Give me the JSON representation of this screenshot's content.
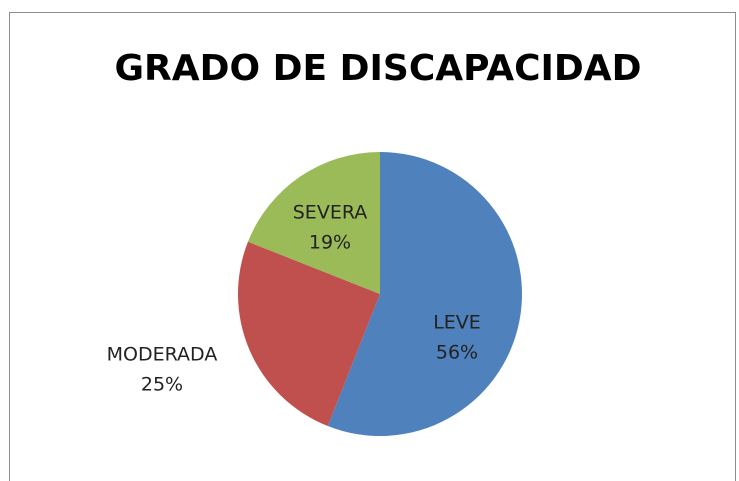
{
  "chart_data": {
    "type": "pie",
    "title": "GRADO DE DISCAPACIDAD",
    "categories": [
      "LEVE",
      "MODERADA",
      "SEVERA"
    ],
    "values": [
      56,
      25,
      19
    ],
    "value_labels": [
      "56%",
      "25%",
      "19%"
    ],
    "colors": [
      "#4f81bd",
      "#c0504d",
      "#9bbb59"
    ]
  }
}
